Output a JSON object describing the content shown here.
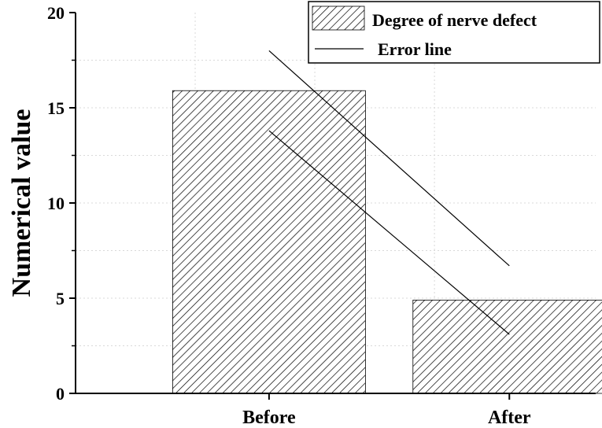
{
  "chart_data": {
    "type": "bar",
    "title": "",
    "xlabel": "",
    "ylabel": "Numerical value",
    "ylim": [
      0,
      20
    ],
    "yticks": [
      0,
      5,
      10,
      15,
      20
    ],
    "categories": [
      "Before",
      "After"
    ],
    "series": [
      {
        "name": "Degree of nerve defect",
        "values": [
          15.9,
          4.9
        ],
        "pattern": "hatched"
      }
    ],
    "error_lines": {
      "name": "Error line",
      "upper": [
        18.0,
        6.7
      ],
      "lower": [
        13.8,
        3.1
      ]
    },
    "grid": true,
    "legend_position": "top-right",
    "colors": {
      "bar_fill": "#ffffff",
      "hatch": "#000000",
      "grid": "#d9d9d9"
    }
  }
}
